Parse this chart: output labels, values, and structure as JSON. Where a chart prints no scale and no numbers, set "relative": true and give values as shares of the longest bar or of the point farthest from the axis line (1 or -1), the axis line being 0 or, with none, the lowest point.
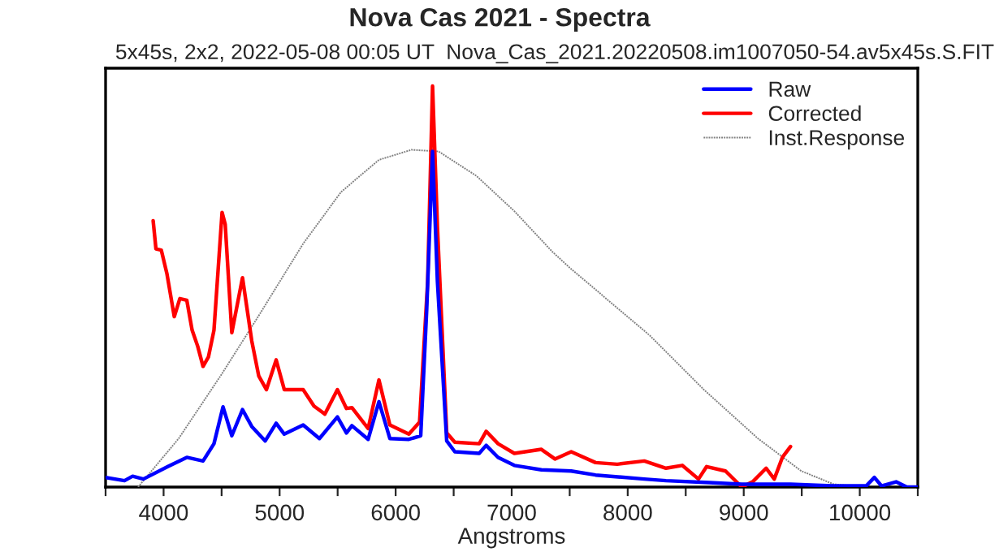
{
  "chart_data": {
    "type": "line",
    "title": "Nova Cas 2021 - Spectra",
    "subtitle": "5x45s, 2x2, 2022-05-08 00:05 UT  Nova_Cas_2021.20220508.im1007050-54.av5x45s.S.FIT",
    "xlabel": "Angstroms",
    "relative": true,
    "xlim": [
      3500,
      10500
    ],
    "xticks": [
      {
        "value": 3500,
        "label": null
      },
      4000,
      {
        "value": 4500,
        "label": null
      },
      5000,
      {
        "value": 5500,
        "label": null
      },
      6000,
      {
        "value": 6500,
        "label": null
      },
      7000,
      {
        "value": 7500,
        "label": null
      },
      8000,
      {
        "value": 8500,
        "label": null
      },
      9000,
      {
        "value": 9500,
        "label": null
      },
      10000,
      {
        "value": 10500,
        "label": null
      }
    ],
    "grid": false,
    "legend": "top right",
    "tick_labels": "x",
    "series": [
      {
        "name": "Raw",
        "color": "#0000ff",
        "line_style": "solid",
        "x": [
          3500,
          3663,
          3733,
          3826,
          4036,
          4200,
          4340,
          4434,
          4512,
          4588,
          4680,
          4760,
          4876,
          4970,
          5040,
          5203,
          5343,
          5498,
          5576,
          5623,
          5763,
          5856,
          5950,
          6114,
          6216,
          6268,
          6318,
          6360,
          6440,
          6510,
          6720,
          6780,
          6883,
          7023,
          7256,
          7513,
          7723,
          8143,
          8330,
          8703,
          8983,
          9403,
          9776,
          10056,
          10126,
          10187,
          10313,
          10406,
          10500
        ],
        "values": [
          0.024,
          0.016,
          0.027,
          0.02,
          0.051,
          0.074,
          0.065,
          0.108,
          0.2,
          0.128,
          0.193,
          0.151,
          0.115,
          0.159,
          0.132,
          0.155,
          0.121,
          0.175,
          0.135,
          0.153,
          0.119,
          0.213,
          0.121,
          0.119,
          0.128,
          0.445,
          0.837,
          0.513,
          0.115,
          0.088,
          0.084,
          0.104,
          0.074,
          0.054,
          0.043,
          0.04,
          0.03,
          0.02,
          0.016,
          0.011,
          0.007,
          0.007,
          0.003,
          0.003,
          0.024,
          0.003,
          0.013,
          0,
          0
        ]
      },
      {
        "name": "Corrected",
        "color": "#ff0000",
        "line_style": "solid",
        "x": [
          3910,
          3934,
          3980,
          4028,
          4092,
          4140,
          4200,
          4246,
          4294,
          4340,
          4386,
          4434,
          4504,
          4531,
          4588,
          4680,
          4760,
          4820,
          4886,
          4970,
          5040,
          5203,
          5296,
          5390,
          5498,
          5576,
          5623,
          5763,
          5856,
          5950,
          6114,
          6206,
          6276,
          6318,
          6360,
          6440,
          6510,
          6720,
          6780,
          6883,
          7023,
          7256,
          7373,
          7513,
          7723,
          7910,
          8143,
          8330,
          8470,
          8610,
          8680,
          8843,
          8983,
          9076,
          9193,
          9263,
          9333,
          9403
        ],
        "values": [
          0.664,
          0.594,
          0.591,
          0.533,
          0.425,
          0.47,
          0.466,
          0.391,
          0.351,
          0.301,
          0.324,
          0.391,
          0.685,
          0.655,
          0.385,
          0.522,
          0.364,
          0.277,
          0.243,
          0.317,
          0.243,
          0.243,
          0.202,
          0.182,
          0.243,
          0.196,
          0.198,
          0.146,
          0.267,
          0.155,
          0.132,
          0.162,
          0.513,
          1.0,
          0.648,
          0.135,
          0.112,
          0.108,
          0.139,
          0.108,
          0.084,
          0.094,
          0.07,
          0.088,
          0.061,
          0.057,
          0.065,
          0.047,
          0.054,
          0.02,
          0.051,
          0.04,
          0,
          0.013,
          0.047,
          0.02,
          0.074,
          0.101
        ]
      },
      {
        "name": "Inst.Response",
        "color": "#808080",
        "line_style": "dotted",
        "x": [
          3780,
          4130,
          4504,
          4830,
          5203,
          5530,
          5856,
          6136,
          6370,
          6696,
          7023,
          7350,
          7500,
          8190,
          8656,
          9123,
          9496,
          9776,
          10056
        ],
        "values": [
          0,
          0.121,
          0.283,
          0.432,
          0.607,
          0.736,
          0.816,
          0.841,
          0.837,
          0.776,
          0.688,
          0.587,
          0.547,
          0.378,
          0.243,
          0.121,
          0.04,
          0.007,
          0
        ]
      }
    ]
  }
}
